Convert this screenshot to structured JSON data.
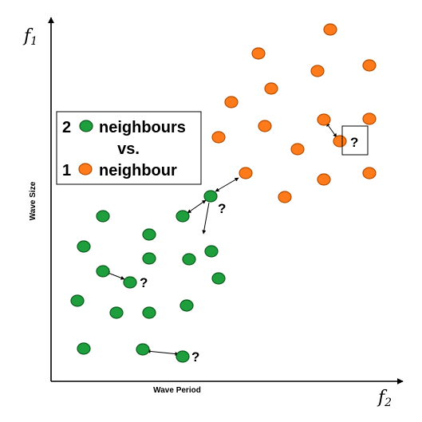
{
  "colors": {
    "class_a_fill": "#1e9e3c",
    "class_a_stroke": "#0b5b1c",
    "class_b_fill": "#ff7a1a",
    "class_b_stroke": "#b54d00",
    "axis": "#000000"
  },
  "axes": {
    "y_symbol": "f",
    "y_subscript": "1",
    "x_symbol": "f",
    "x_subscript": "2",
    "y_title": "Wave Size",
    "x_title": "Wave Period"
  },
  "legend": {
    "line1_count": "2",
    "line1_word": "neighbours",
    "line2": "vs.",
    "line3_count": "1",
    "line3_word": "neighbour"
  },
  "query_label": "?"
}
